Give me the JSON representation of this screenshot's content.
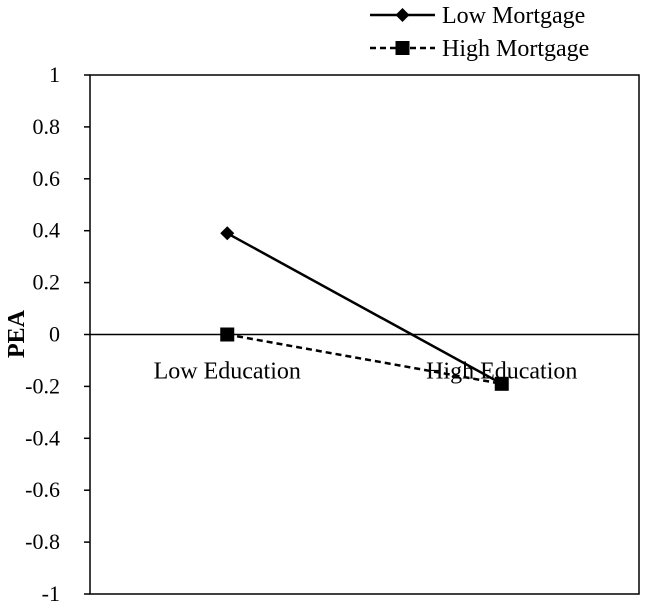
{
  "chart_data": {
    "type": "line",
    "categories": [
      "Low  Education",
      "High  Education"
    ],
    "series": [
      {
        "name": "Low  Mortgage",
        "values": [
          0.39,
          -0.19
        ],
        "marker": "diamond",
        "dash": "solid",
        "color": "#000000"
      },
      {
        "name": "High  Mortgage",
        "values": [
          0.0,
          -0.19
        ],
        "marker": "square",
        "dash": "dashed",
        "color": "#000000"
      }
    ],
    "ylabel": "PEA",
    "ylim": [
      -1,
      1
    ],
    "yticks": [
      "1",
      "0.8",
      "0.6",
      "0.4",
      "0.2",
      "0",
      "-0.2",
      "-0.4",
      "-0.6",
      "-0.8",
      "-1"
    ],
    "grid": false,
    "legend_position": "top-right"
  }
}
